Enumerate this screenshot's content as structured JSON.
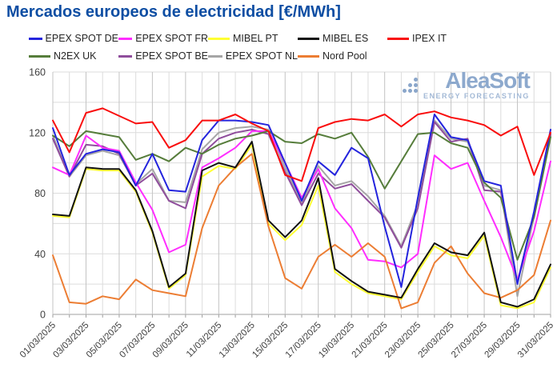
{
  "page": {
    "title": "Mercados europeos de electricidad [€/MWh]"
  },
  "logo": {
    "name": "AleaSoft",
    "tagline": "ENERGY FORECASTING"
  },
  "colors": {
    "title": "#0e4ea3",
    "grid_minor": "#dcdcdc",
    "grid_major": "#c3c3c3",
    "axis_line": "#a0a0a0",
    "axis_text": "#3f3f3f"
  },
  "chart_data": {
    "type": "line",
    "title": "Mercados europeos de electricidad [€/MWh]",
    "xlabel": "",
    "ylabel": "",
    "ylim": [
      0,
      160
    ],
    "y_ticks": [
      0,
      40,
      80,
      120,
      160
    ],
    "grid_step": 20,
    "grid": true,
    "legend_position": "top",
    "x": [
      "01/03/2025",
      "02/03/2025",
      "03/03/2025",
      "04/03/2025",
      "05/03/2025",
      "06/03/2025",
      "07/03/2025",
      "08/03/2025",
      "09/03/2025",
      "10/03/2025",
      "11/03/2025",
      "12/03/2025",
      "13/03/2025",
      "14/03/2025",
      "15/03/2025",
      "16/03/2025",
      "17/03/2025",
      "18/03/2025",
      "19/03/2025",
      "20/03/2025",
      "21/03/2025",
      "22/03/2025",
      "23/03/2025",
      "24/03/2025",
      "25/03/2025",
      "26/03/2025",
      "27/03/2025",
      "28/03/2025",
      "29/03/2025",
      "30/03/2025",
      "31/03/2025"
    ],
    "x_tick_labels": [
      "01/03/2025",
      "03/03/2025",
      "05/03/2025",
      "07/03/2025",
      "09/03/2025",
      "11/03/2025",
      "13/03/2025",
      "15/03/2025",
      "17/03/2025",
      "19/03/2025",
      "21/03/2025",
      "23/03/2025",
      "25/03/2025",
      "27/03/2025",
      "29/03/2025",
      "31/03/2025"
    ],
    "series": [
      {
        "name": "EPEX SPOT DE",
        "color": "#2424dd",
        "values": [
          123,
          92,
          106,
          109,
          107,
          85,
          106,
          82,
          81,
          115,
          128,
          128,
          127,
          125,
          100,
          75,
          101,
          92,
          110,
          103,
          58,
          18,
          77,
          132,
          117,
          115,
          88,
          85,
          20,
          68,
          122
        ]
      },
      {
        "name": "EPEX SPOT FR",
        "color": "#ff2dff",
        "values": [
          97,
          92,
          118,
          110,
          108,
          87,
          69,
          41,
          46,
          97,
          103,
          110,
          121,
          121,
          100,
          77,
          96,
          70,
          57,
          36,
          35,
          31,
          40,
          105,
          96,
          100,
          75,
          51,
          23,
          55,
          101
        ]
      },
      {
        "name": "MIBEL PT",
        "color": "#ffff33",
        "values": [
          65,
          64,
          96,
          95,
          95,
          81,
          54,
          17,
          26,
          91,
          98,
          96,
          112,
          60,
          49,
          59,
          85,
          28,
          20,
          14,
          12,
          10,
          28,
          45,
          39,
          37,
          52,
          6,
          4,
          8,
          31
        ]
      },
      {
        "name": "MIBEL ES",
        "color": "#111111",
        "values": [
          66,
          65,
          97,
          96,
          96,
          82,
          55,
          18,
          27,
          95,
          100,
          97,
          114,
          62,
          51,
          62,
          90,
          30,
          22,
          15,
          13,
          11,
          30,
          47,
          41,
          39,
          54,
          8,
          5,
          10,
          33
        ]
      },
      {
        "name": "IPEX IT",
        "color": "#f90d0d",
        "values": [
          128,
          107,
          133,
          136,
          131,
          126,
          127,
          110,
          115,
          128,
          128,
          132,
          126,
          121,
          92,
          88,
          123,
          127,
          129,
          128,
          132,
          124,
          132,
          134,
          130,
          128,
          125,
          118,
          124,
          92,
          120
        ]
      },
      {
        "name": "N2EX UK",
        "color": "#567d3b",
        "values": [
          118,
          111,
          121,
          119,
          117,
          102,
          106,
          101,
          110,
          106,
          112,
          116,
          118,
          121,
          114,
          113,
          119,
          116,
          120,
          104,
          83,
          101,
          119,
          120,
          113,
          110,
          87,
          77,
          36,
          64,
          117
        ]
      },
      {
        "name": "EPEX SPOT BE",
        "color": "#8f4d9c",
        "values": [
          116,
          91,
          112,
          111,
          106,
          85,
          93,
          75,
          70,
          106,
          116,
          120,
          122,
          119,
          94,
          72,
          93,
          83,
          86,
          75,
          64,
          44,
          70,
          127,
          114,
          116,
          82,
          81,
          21,
          67,
          119
        ]
      },
      {
        "name": "EPEX SPOT NL",
        "color": "#a6a6a6",
        "values": [
          118,
          91,
          105,
          108,
          105,
          86,
          96,
          75,
          74,
          109,
          120,
          123,
          124,
          122,
          97,
          73,
          98,
          85,
          88,
          78,
          65,
          45,
          73,
          128,
          116,
          114,
          85,
          82,
          12,
          65,
          118
        ]
      },
      {
        "name": "Nord Pool",
        "color": "#ec7d33",
        "values": [
          39,
          8,
          7,
          12,
          10,
          23,
          16,
          14,
          12,
          57,
          85,
          97,
          106,
          58,
          24,
          17,
          38,
          46,
          38,
          47,
          38,
          4,
          8,
          34,
          45,
          27,
          14,
          11,
          16,
          26,
          62
        ]
      }
    ],
    "legend_rows": [
      [
        0,
        1,
        2,
        3,
        4
      ],
      [
        5,
        6,
        7,
        8
      ]
    ]
  }
}
